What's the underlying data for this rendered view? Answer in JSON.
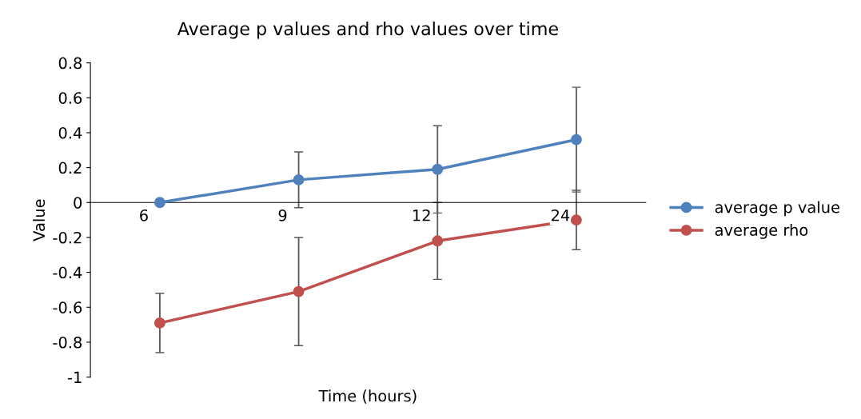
{
  "chart_data": {
    "type": "line",
    "title": "Average p values and rho values over time",
    "xlabel": "Time (hours)",
    "ylabel": "Value",
    "categories": [
      "6",
      "9",
      "12",
      "24"
    ],
    "series": [
      {
        "name": "average p value",
        "color": "#4f81bd",
        "values": [
          0,
          0.13,
          0.19,
          0.36
        ],
        "errors": [
          null,
          0.16,
          0.25,
          0.3
        ]
      },
      {
        "name": "average rho",
        "color": "#c0504d",
        "values": [
          -0.69,
          -0.51,
          -0.22,
          -0.1
        ],
        "errors": [
          0.17,
          0.31,
          0.22,
          0.17
        ]
      }
    ],
    "ylim": [
      -1,
      0.8
    ],
    "yticks": [
      -1,
      -0.8,
      -0.6,
      -0.4,
      -0.2,
      0,
      0.2,
      0.4,
      0.6,
      0.8
    ],
    "grid": false,
    "legend": "right",
    "marker": "circle",
    "line_style": "solid"
  }
}
